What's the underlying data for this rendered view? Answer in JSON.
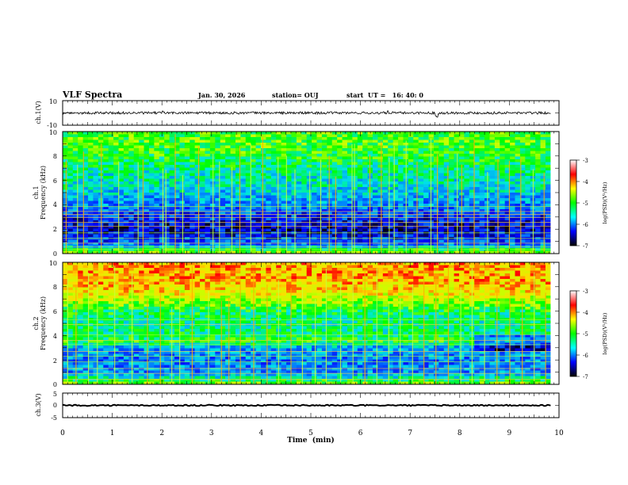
{
  "header": {
    "title": "VLF Spectra",
    "date": "Jan. 30, 2026",
    "station": "station= OUJ",
    "start": "start  UT =   16: 40: 0"
  },
  "panels": {
    "ch1_wave": {
      "ylabel": "ch.1(V)"
    },
    "ch1_spec": {
      "ylabel_line1": "ch.1",
      "ylabel_line2": "Frequency (kHz)"
    },
    "ch2_spec": {
      "ylabel_line1": "ch.2",
      "ylabel_line2": "Frequency (kHz)"
    },
    "ch3_wave": {
      "ylabel": "ch.3(V)"
    }
  },
  "xaxis": {
    "label": "Time  (min)"
  },
  "colorbar": {
    "label": "log(PSD)(V²/Hz)",
    "ticks": [
      "-3",
      "-4",
      "-5",
      "-6",
      "-7"
    ],
    "colors": [
      "#ffffff",
      "#ff0000",
      "#ffff00",
      "#00ff00",
      "#00ffff",
      "#0000ff",
      "#000000"
    ]
  },
  "chart_data": [
    {
      "type": "line",
      "name": "ch.1 waveform",
      "ylabel": "ch.1(V)",
      "ylim": [
        -10,
        10
      ],
      "yticks": [
        "10",
        "-10"
      ],
      "xlim": [
        0,
        10
      ],
      "duration_min": 9.83,
      "baseline": 0,
      "noise_amplitude": 1.0,
      "spikes": [
        {
          "t": 2.02,
          "v": 1.5
        },
        {
          "t": 6.55,
          "v": 1.7
        },
        {
          "t": 7.52,
          "v": -2.5
        },
        {
          "t": 7.55,
          "v": -3.5
        }
      ]
    },
    {
      "type": "heatmap",
      "name": "ch.1 spectrogram",
      "ylabel": "ch.1 Frequency (kHz)",
      "ylim": [
        0,
        10
      ],
      "yticks": [
        "0",
        "2",
        "4",
        "6",
        "8",
        "10"
      ],
      "xlim": [
        0,
        10
      ],
      "duration_min": 9.83,
      "clim": [
        -7,
        -3
      ],
      "profile": [
        {
          "f": 0.0,
          "v": -4.6
        },
        {
          "f": 0.3,
          "v": -5.0
        },
        {
          "f": 0.7,
          "v": -6.0
        },
        {
          "f": 1.2,
          "v": -6.3
        },
        {
          "f": 2.0,
          "v": -6.6
        },
        {
          "f": 3.0,
          "v": -6.3
        },
        {
          "f": 3.8,
          "v": -6.0
        },
        {
          "f": 4.5,
          "v": -5.8
        },
        {
          "f": 5.5,
          "v": -5.5
        },
        {
          "f": 6.5,
          "v": -5.4
        },
        {
          "f": 7.2,
          "v": -5.2
        },
        {
          "f": 8.0,
          "v": -5.0
        },
        {
          "f": 9.0,
          "v": -4.9
        },
        {
          "f": 10.0,
          "v": -4.9
        }
      ],
      "sferic_times_min": [
        0.07,
        0.3,
        0.42,
        0.78,
        1.13,
        1.52,
        1.62,
        2.02,
        2.08,
        2.27,
        2.42,
        2.74,
        3.03,
        3.16,
        3.41,
        3.57,
        3.79,
        4.03,
        4.34,
        4.51,
        4.68,
        4.98,
        5.2,
        5.37,
        5.5,
        5.83,
        5.88,
        6.19,
        6.42,
        6.58,
        6.68,
        6.92,
        7.14,
        7.42,
        7.55,
        7.76,
        7.95,
        8.04,
        8.29,
        8.56,
        8.77,
        9.0,
        9.23,
        9.48,
        9.7
      ],
      "tone_lines_khz": [
        0.35,
        0.55,
        0.85,
        1.25,
        1.7,
        2.25,
        2.55,
        2.95,
        3.2,
        3.45,
        3.85
      ]
    },
    {
      "type": "heatmap",
      "name": "ch.2 spectrogram",
      "ylabel": "ch.2 Frequency (kHz)",
      "ylim": [
        0,
        10
      ],
      "yticks": [
        "0",
        "2",
        "4",
        "6",
        "8",
        "10"
      ],
      "xlim": [
        0,
        10
      ],
      "duration_min": 9.83,
      "clim": [
        -7,
        -3
      ],
      "profile": [
        {
          "f": 0.0,
          "v": -4.6
        },
        {
          "f": 0.5,
          "v": -5.4
        },
        {
          "f": 1.0,
          "v": -5.9
        },
        {
          "f": 2.0,
          "v": -6.0
        },
        {
          "f": 3.0,
          "v": -5.8
        },
        {
          "f": 3.5,
          "v": -5.0
        },
        {
          "f": 4.0,
          "v": -5.2
        },
        {
          "f": 5.0,
          "v": -5.3
        },
        {
          "f": 6.0,
          "v": -5.1
        },
        {
          "f": 6.8,
          "v": -4.6
        },
        {
          "f": 7.5,
          "v": -4.2
        },
        {
          "f": 8.5,
          "v": -3.95
        },
        {
          "f": 10.0,
          "v": -3.9
        }
      ],
      "band_change_min": 8.3,
      "sferic_times_min": [
        0.1,
        0.27,
        0.52,
        0.7,
        1.05,
        1.4,
        1.71,
        1.97,
        2.2,
        2.36,
        2.61,
        2.94,
        3.2,
        3.35,
        3.58,
        3.85,
        4.12,
        4.35,
        4.6,
        4.83,
        5.09,
        5.31,
        5.6,
        5.85,
        6.09,
        6.33,
        6.57,
        6.8,
        7.05,
        7.28,
        7.52,
        7.77,
        8.02,
        8.25,
        8.5,
        8.75,
        9.01,
        9.26,
        9.5,
        9.73
      ],
      "tone_lines_khz": [
        0.4,
        0.9,
        1.3,
        1.85,
        2.3,
        2.7,
        3.25,
        3.6,
        4.05,
        4.9,
        5.3
      ]
    },
    {
      "type": "line",
      "name": "ch.3 waveform",
      "ylabel": "ch.3(V)",
      "ylim": [
        -5,
        5
      ],
      "yticks": [
        "5",
        "0",
        "-5"
      ],
      "xlim": [
        0,
        10
      ],
      "duration_min": 9.83,
      "baseline": 0,
      "noise_amplitude": 0.25
    }
  ],
  "time_axis": {
    "label": "Time  (min)",
    "xlim": [
      0,
      10
    ],
    "ticks": [
      "0",
      "1",
      "2",
      "3",
      "4",
      "5",
      "6",
      "7",
      "8",
      "9",
      "10"
    ]
  }
}
